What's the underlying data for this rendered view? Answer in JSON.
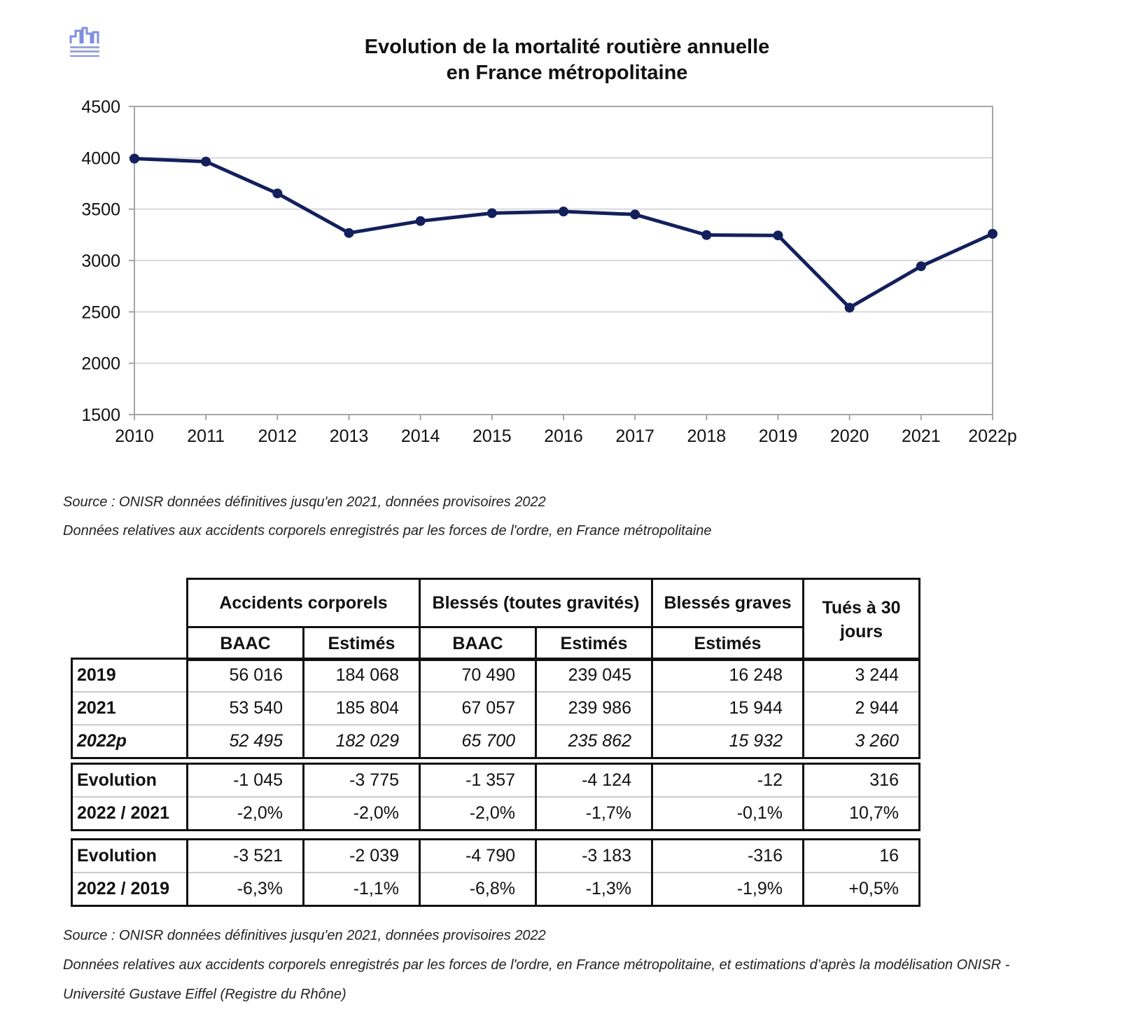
{
  "chart_data": {
    "type": "line",
    "title": "Evolution de la mortalité routière annuelle",
    "subtitle": "en France métropolitaine",
    "categories": [
      "2010",
      "2011",
      "2012",
      "2013",
      "2014",
      "2015",
      "2016",
      "2017",
      "2018",
      "2019",
      "2020",
      "2021",
      "2022p"
    ],
    "series": [
      {
        "values": [
          3992,
          3963,
          3653,
          3268,
          3384,
          3461,
          3477,
          3448,
          3248,
          3244,
          2541,
          2944,
          3260
        ]
      }
    ],
    "ylim": [
      1500,
      4500
    ],
    "yticks": [
      1500,
      2000,
      2500,
      3000,
      3500,
      4000,
      4500
    ],
    "grid": true,
    "colors": {
      "line": "#13205c",
      "grid": "#d9d9d9",
      "frame": "#a6a6a6"
    }
  },
  "chart_notes": {
    "source": "Source : ONISR données définitives jusqu'en 2021, données provisoires 2022",
    "scope": "Données relatives aux accidents corporels enregistrés par les forces de l'ordre, en France métropolitaine"
  },
  "table": {
    "groups": {
      "accidents": "Accidents corporels",
      "blesses": "Blessés (toutes gravités)",
      "graves": "Blessés graves",
      "tues": "Tués à 30 jours"
    },
    "sub": {
      "acc_baac": "BAAC",
      "acc_est": "Estimés",
      "bl_baac": "BAAC",
      "bl_est": "Estimés",
      "gr_est": "Estimés"
    },
    "block1": [
      {
        "label": "2019",
        "values": [
          "56 016",
          "184 068",
          "70 490",
          "239 045",
          "16 248",
          "3 244"
        ]
      },
      {
        "label": "2021",
        "values": [
          "53 540",
          "185 804",
          "67 057",
          "239 986",
          "15 944",
          "2 944"
        ]
      },
      {
        "label": "2022p",
        "values": [
          "52 495",
          "182 029",
          "65 700",
          "235 862",
          "15 932",
          "3 260"
        ]
      }
    ],
    "block2": [
      {
        "label": "Evolution",
        "values": [
          "-1 045",
          "-3 775",
          "-1 357",
          "-4 124",
          "-12",
          "316"
        ]
      },
      {
        "label": "2022 / 2021",
        "values": [
          "-2,0%",
          "-2,0%",
          "-2,0%",
          "-1,7%",
          "-0,1%",
          "10,7%"
        ]
      }
    ],
    "block3": [
      {
        "label": "Evolution",
        "values": [
          "-3 521",
          "-2 039",
          "-4 790",
          "-3 183",
          "-316",
          "16"
        ]
      },
      {
        "label": "2022 / 2019",
        "values": [
          "-6,3%",
          "-1,1%",
          "-6,8%",
          "-1,3%",
          "-1,9%",
          "+0,5%"
        ]
      }
    ]
  },
  "table_notes": {
    "source": "Source : ONISR données définitives jusqu'en 2021, données provisoires 2022",
    "scope_line1": "Données relatives aux accidents corporels enregistrés par les forces de l'ordre, en France métropolitaine, et estimations d’après la modélisation ONISR -",
    "scope_line2": "Université Gustave Eiffel (Registre du Rhône)"
  }
}
